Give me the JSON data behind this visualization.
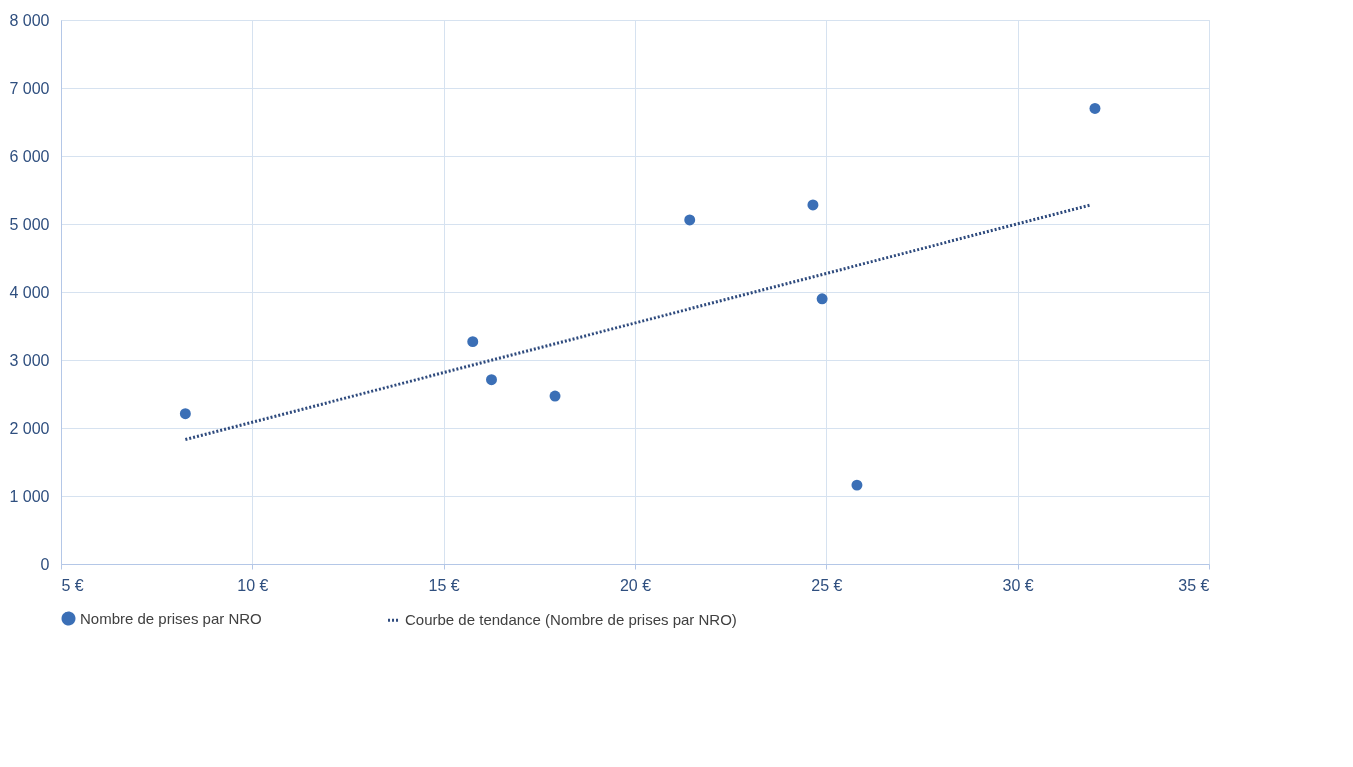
{
  "chart_data": {
    "type": "scatter",
    "xlim": [
      5,
      35
    ],
    "xticks": [
      {
        "value": 5,
        "label": "5 €"
      },
      {
        "value": 10,
        "label": "10 €"
      },
      {
        "value": 15,
        "label": "15 €"
      },
      {
        "value": 20,
        "label": "20 €"
      },
      {
        "value": 25,
        "label": "25 €"
      },
      {
        "value": 30,
        "label": "30 €"
      },
      {
        "value": 35,
        "label": "35 €"
      }
    ],
    "ylim": [
      0,
      8000
    ],
    "yticks": [
      0,
      {
        "value": 1000,
        "label": "1 000"
      },
      {
        "value": 2000,
        "label": "2 000"
      },
      {
        "value": 3000,
        "label": "3 000"
      },
      {
        "value": 4000,
        "label": "4 000"
      },
      {
        "value": 5000,
        "label": "5 000"
      },
      {
        "value": 6000,
        "label": "6 000"
      },
      {
        "value": 7000,
        "label": "7 000"
      },
      {
        "value": 8000,
        "label": "8 000"
      }
    ],
    "grid": true,
    "legend": "bottom",
    "series": [
      {
        "name": "Nombre de prises par NRO",
        "marker": "circle",
        "color": "#3b6fb6",
        "x": [
          8.25,
          15.76,
          16.25,
          17.91,
          21.43,
          24.65,
          24.89,
          25.8,
          32.02
        ],
        "values": [
          2210,
          3270,
          2710,
          2470,
          5060,
          5280,
          3900,
          1160,
          6700
        ]
      },
      {
        "name": "Courbe de tendance (Nombre de prises par NRO)",
        "type": "line",
        "line_style": "dotted",
        "color": "#2e4a7d",
        "x": [
          8.25,
          31.9
        ],
        "values": [
          1830,
          5280
        ]
      }
    ]
  }
}
